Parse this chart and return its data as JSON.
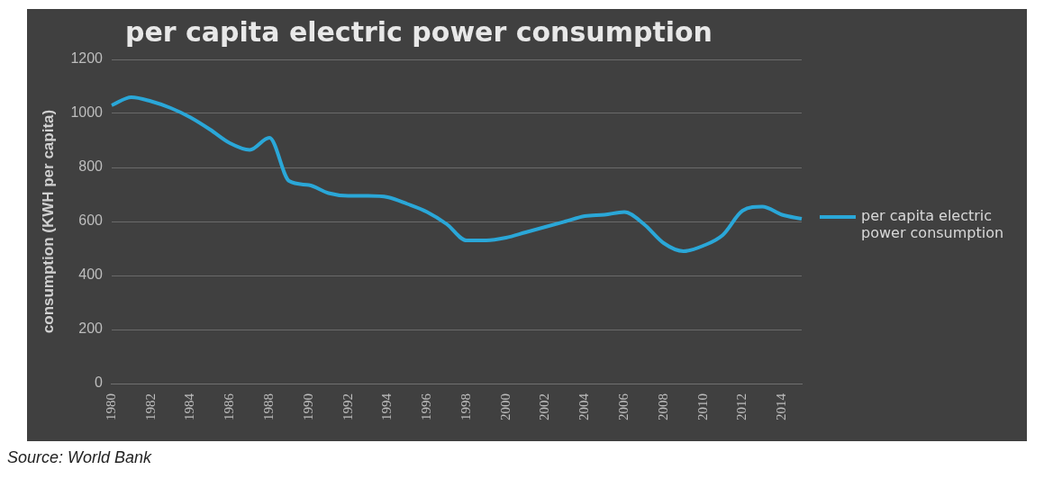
{
  "chart_data": {
    "type": "line",
    "title": "per capita electric power consumption",
    "ylabel": "consumption (KWH per capita)",
    "categories": [
      "1980",
      null,
      "1982",
      null,
      "1984",
      null,
      "1986",
      null,
      "1988",
      null,
      "1990",
      null,
      "1992",
      null,
      "1994",
      null,
      "1996",
      null,
      "1998",
      null,
      "2000",
      null,
      "2002",
      null,
      "2004",
      null,
      "2006",
      null,
      "2008",
      null,
      "2010",
      null,
      "2012",
      null,
      "2014",
      null
    ],
    "series": [
      {
        "name": "per capita electric power consumption",
        "color": "#2aa7d8",
        "values": [
          1030,
          1060,
          1045,
          1020,
          985,
          940,
          890,
          865,
          910,
          750,
          735,
          705,
          695,
          695,
          690,
          665,
          635,
          590,
          530,
          530,
          540,
          560,
          580,
          600,
          620,
          625,
          635,
          590,
          520,
          490,
          510,
          550,
          640,
          655,
          625,
          610
        ]
      }
    ],
    "ylim": [
      0,
      1200
    ],
    "yticks": [
      0,
      200,
      400,
      600,
      800,
      1000,
      1200
    ],
    "grid": "y",
    "legend": "right",
    "marker": "none",
    "line_style": "solid",
    "annotations": [
      "Source: World Bank"
    ]
  }
}
